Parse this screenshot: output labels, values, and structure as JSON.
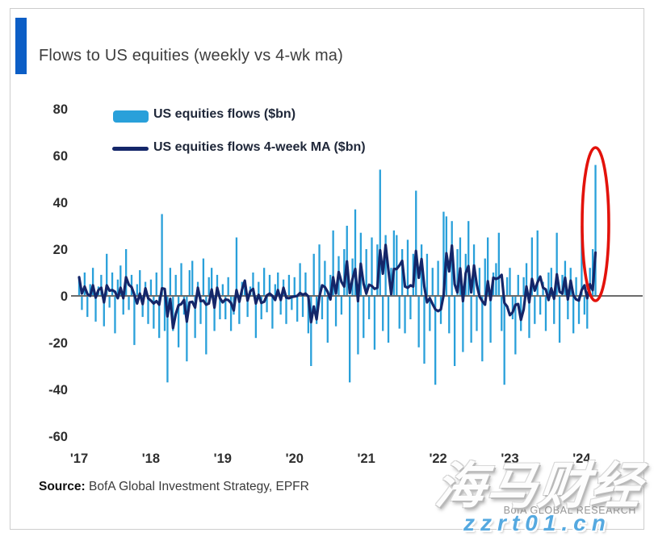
{
  "header": {
    "title": "Flows to US equities (weekly vs 4-wk ma)"
  },
  "legend": [
    {
      "label": "US equities flows ($bn)",
      "swatch": "bar",
      "color": "#29A0DA"
    },
    {
      "label": "US equities flows 4-week MA ($bn)",
      "swatch": "line",
      "color": "#142669"
    }
  ],
  "source": {
    "label": "Source:",
    "text": " BofA Global Investment Strategy, EPFR"
  },
  "footer": {
    "brand": "BofA GLOBAL RESEARCH"
  },
  "watermark": {
    "cn_text": "海马财经",
    "url_text": "zzrt01.cn"
  },
  "colors": {
    "accent_blue": "#0C5EC6",
    "bar_blue": "#29A0DA",
    "ma_navy": "#142669",
    "zero_line": "#6b6b6b",
    "annotation_red": "#E3120B",
    "tick_text": "#2e2e2e"
  },
  "chart_data": {
    "type": "bar",
    "title": "Flows to US equities (weekly vs 4-wk ma)",
    "unit": "$bn",
    "x_tick_labels": [
      "'17",
      "'18",
      "'19",
      "'20",
      "'21",
      "'22",
      "'23",
      "'24"
    ],
    "x_tick_indices": [
      0,
      26,
      52,
      78,
      104,
      130,
      156,
      182
    ],
    "y_ticks": [
      80,
      60,
      40,
      20,
      0,
      -20,
      -40,
      -60
    ],
    "ylim": [
      -60,
      80
    ],
    "grid": false,
    "legend_position": "top-left",
    "series": [
      {
        "name": "US equities flows ($bn)",
        "type": "bar",
        "color": "#29A0DA",
        "values": [
          8,
          -6,
          10,
          -9,
          5,
          12,
          -11,
          4,
          9,
          -13,
          18,
          -5,
          10,
          -16,
          7,
          13,
          -8,
          20,
          -6,
          9,
          -21,
          5,
          11,
          -9,
          6,
          -12,
          7,
          -14,
          10,
          -18,
          35,
          -15,
          -37,
          12,
          -15,
          9,
          -22,
          14,
          -8,
          -28,
          11,
          15,
          -18,
          6,
          -12,
          16,
          -25,
          8,
          12,
          -15,
          9,
          -10,
          5,
          -10,
          8,
          -15,
          -8,
          25,
          -12,
          6,
          7,
          -9,
          4,
          10,
          -18,
          6,
          -10,
          12,
          -7,
          9,
          -14,
          5,
          10,
          -8,
          7,
          -12,
          9,
          -6,
          8,
          -11,
          14,
          -9,
          10,
          -16,
          -30,
          18,
          -12,
          22,
          -10,
          15,
          -20,
          9,
          28,
          -13,
          17,
          -8,
          20,
          30,
          -37,
          16,
          37,
          -25,
          27,
          -18,
          20,
          -10,
          25,
          -23,
          22,
          54,
          -15,
          26,
          -20,
          12,
          28,
          26,
          -14,
          20,
          -16,
          24,
          -10,
          18,
          45,
          -22,
          22,
          -29,
          18,
          -15,
          12,
          -38,
          15,
          -12,
          36,
          34,
          -16,
          32,
          -30,
          20,
          25,
          -24,
          18,
          32,
          -20,
          22,
          -15,
          12,
          -28,
          16,
          25,
          -20,
          10,
          14,
          27,
          -15,
          -38,
          8,
          12,
          -10,
          -25,
          9,
          -15,
          8,
          14,
          -18,
          25,
          -12,
          28,
          -8,
          6,
          -15,
          10,
          12,
          -12,
          27,
          -20,
          9,
          15,
          -10,
          12,
          -16,
          8,
          -12,
          30,
          -8,
          -14,
          12,
          20,
          56
        ]
      },
      {
        "name": "US equities flows 4-week MA ($bn)",
        "type": "line",
        "color": "#142669",
        "derived": "trailing moving average of the weekly flows series",
        "ma_window": 4
      }
    ],
    "annotation": {
      "shape": "ellipse",
      "color": "#E3120B",
      "highlights": "latest weekly inflow spike of about $56bn in 2024"
    }
  }
}
